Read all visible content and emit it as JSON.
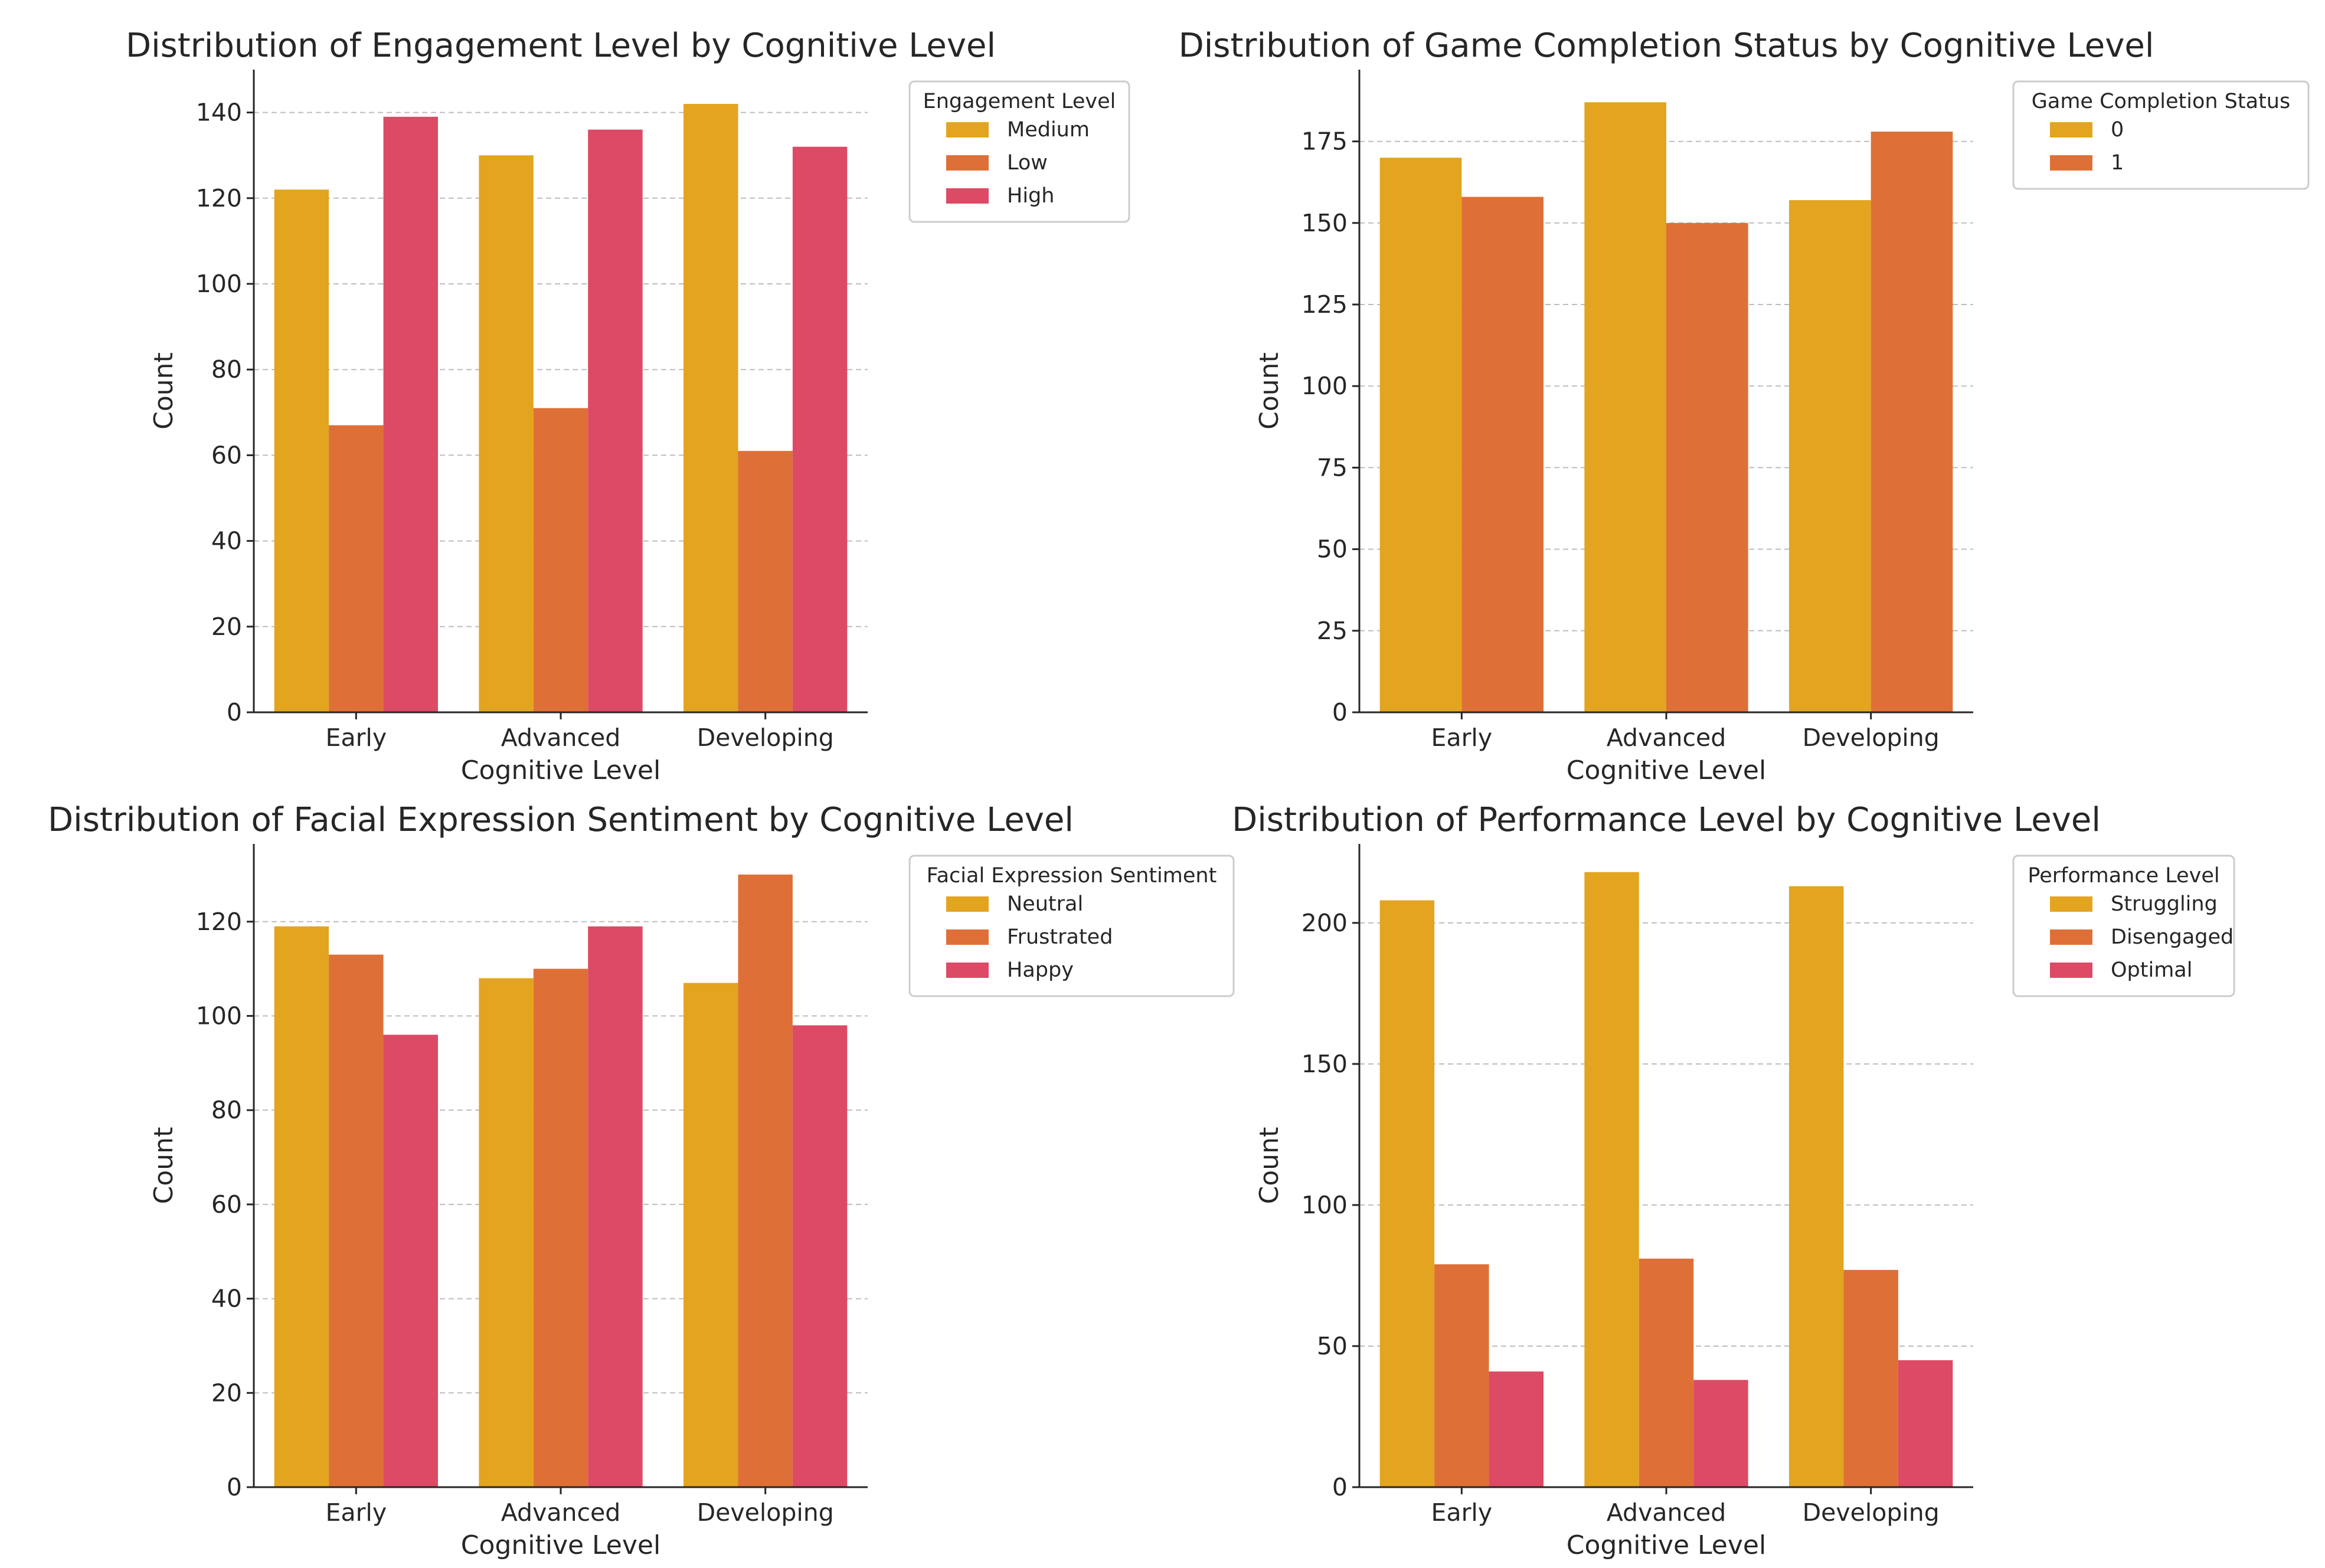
{
  "colors": {
    "series_1": "#E3A41F",
    "series_2": "#DE7037",
    "series_3": "#DD4A65"
  },
  "chart_data": [
    {
      "type": "bar",
      "title": "Distribution of Engagement Level by Cognitive Level",
      "xlabel": "Cognitive Level",
      "ylabel": "Count",
      "categories": [
        "Early",
        "Advanced",
        "Developing"
      ],
      "ylim": [
        0,
        150
      ],
      "yticks": [
        0,
        20,
        40,
        60,
        80,
        100,
        120,
        140
      ],
      "grid": true,
      "legend_title": "Engagement Level",
      "legend_position": "outside-right-top",
      "series": [
        {
          "name": "Medium",
          "values": [
            122,
            130,
            142
          ]
        },
        {
          "name": "Low",
          "values": [
            67,
            71,
            61
          ]
        },
        {
          "name": "High",
          "values": [
            139,
            136,
            132
          ]
        }
      ]
    },
    {
      "type": "bar",
      "title": "Distribution of Game Completion Status by Cognitive Level",
      "xlabel": "Cognitive Level",
      "ylabel": "Count",
      "categories": [
        "Early",
        "Advanced",
        "Developing"
      ],
      "ylim": [
        0,
        197
      ],
      "yticks": [
        0,
        25,
        50,
        75,
        100,
        125,
        150,
        175
      ],
      "grid": true,
      "legend_title": "Game Completion Status",
      "legend_position": "outside-right-top",
      "series": [
        {
          "name": "0",
          "values": [
            170,
            187,
            157
          ]
        },
        {
          "name": "1",
          "values": [
            158,
            150,
            178
          ]
        }
      ]
    },
    {
      "type": "bar",
      "title": "Distribution of Facial Expression Sentiment by Cognitive Level",
      "xlabel": "Cognitive Level",
      "ylabel": "Count",
      "categories": [
        "Early",
        "Advanced",
        "Developing"
      ],
      "ylim": [
        0,
        136.5
      ],
      "yticks": [
        0,
        20,
        40,
        60,
        80,
        100,
        120
      ],
      "grid": true,
      "legend_title": "Facial Expression Sentiment",
      "legend_position": "outside-right-top",
      "series": [
        {
          "name": "Neutral",
          "values": [
            119,
            108,
            107
          ]
        },
        {
          "name": "Frustrated",
          "values": [
            113,
            110,
            130
          ]
        },
        {
          "name": "Happy",
          "values": [
            96,
            119,
            98
          ]
        }
      ]
    },
    {
      "type": "bar",
      "title": "Distribution of Performance Level by Cognitive Level",
      "xlabel": "Cognitive Level",
      "ylabel": "Count",
      "categories": [
        "Early",
        "Advanced",
        "Developing"
      ],
      "ylim": [
        0,
        228
      ],
      "yticks": [
        0,
        50,
        100,
        150,
        200
      ],
      "grid": true,
      "legend_title": "Performance Level",
      "legend_position": "outside-right-top",
      "series": [
        {
          "name": "Struggling",
          "values": [
            208,
            218,
            213
          ]
        },
        {
          "name": "Disengaged",
          "values": [
            79,
            81,
            77
          ]
        },
        {
          "name": "Optimal",
          "values": [
            41,
            38,
            45
          ]
        }
      ]
    }
  ]
}
